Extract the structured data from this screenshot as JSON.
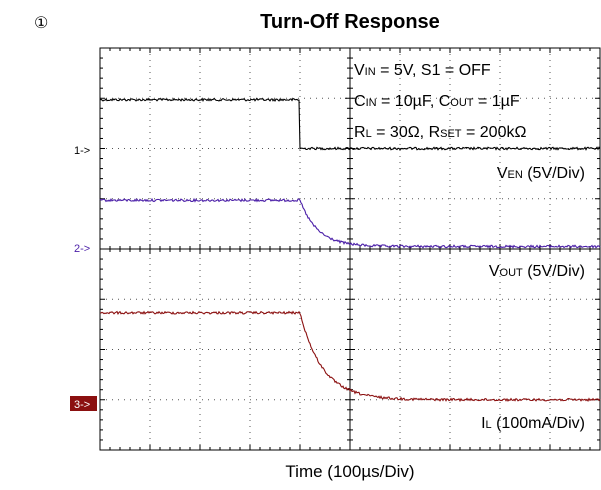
{
  "page_marker": "①",
  "chart_data": {
    "type": "line",
    "title": "Turn-Off Response",
    "xlabel": "Time (100µs/Div)",
    "x_divisions": 10,
    "y_divisions": 8,
    "grid": true,
    "conditions": {
      "line1": {
        "a": "V",
        "a_sub": "IN",
        "b": " = 5V, S1 = OFF"
      },
      "line2": {
        "a": "C",
        "a_sub": "IN",
        "b": " = 10µF, C",
        "b_sub": "OUT",
        "c": " = 1µF"
      },
      "line3": {
        "a": "R",
        "a_sub": "L",
        "b": " = 30Ω, R",
        "b_sub": "SET",
        "c": " = 200kΩ"
      }
    },
    "series": [
      {
        "name": "V",
        "name_sub": "EN",
        "scale": " (5V/Div)",
        "marker": "1->",
        "color": "#000000",
        "ground_div": 6.0,
        "high_div": 0.97,
        "low_div": 0.0,
        "transition_div": 4.0,
        "fall_tau_div": 0.0
      },
      {
        "name": "V",
        "name_sub": "OUT",
        "scale": " (5V/Div)",
        "marker": "2->",
        "color": "#4b1fa8",
        "ground_div": 4.0,
        "high_div": 0.97,
        "low_div": 0.05,
        "transition_div": 4.0,
        "fall_tau_div": 0.35
      },
      {
        "name": "I",
        "name_sub": "L",
        "scale": " (100mA/Div)",
        "marker": "3->",
        "color": "#8b1010",
        "ground_div": 1.0,
        "high_div": 1.73,
        "low_div": 0.0,
        "transition_div": 4.0,
        "fall_tau_div": 0.45
      }
    ]
  }
}
